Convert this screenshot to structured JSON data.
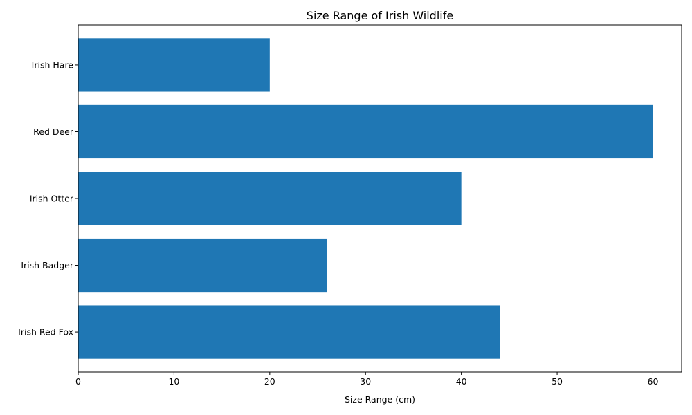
{
  "chart_data": {
    "type": "bar",
    "orientation": "horizontal",
    "title": "Size Range of Irish Wildlife",
    "xlabel": "Size Range (cm)",
    "ylabel": "",
    "categories": [
      "Irish Red Fox",
      "Irish Badger",
      "Irish Otter",
      "Red Deer",
      "Irish Hare"
    ],
    "values": [
      44,
      26,
      40,
      60,
      20
    ],
    "xlim": [
      0,
      63
    ],
    "xticks": [
      0,
      10,
      20,
      30,
      40,
      50,
      60
    ],
    "grid": false,
    "legend": "none",
    "bar_color": "#1f77b4"
  }
}
